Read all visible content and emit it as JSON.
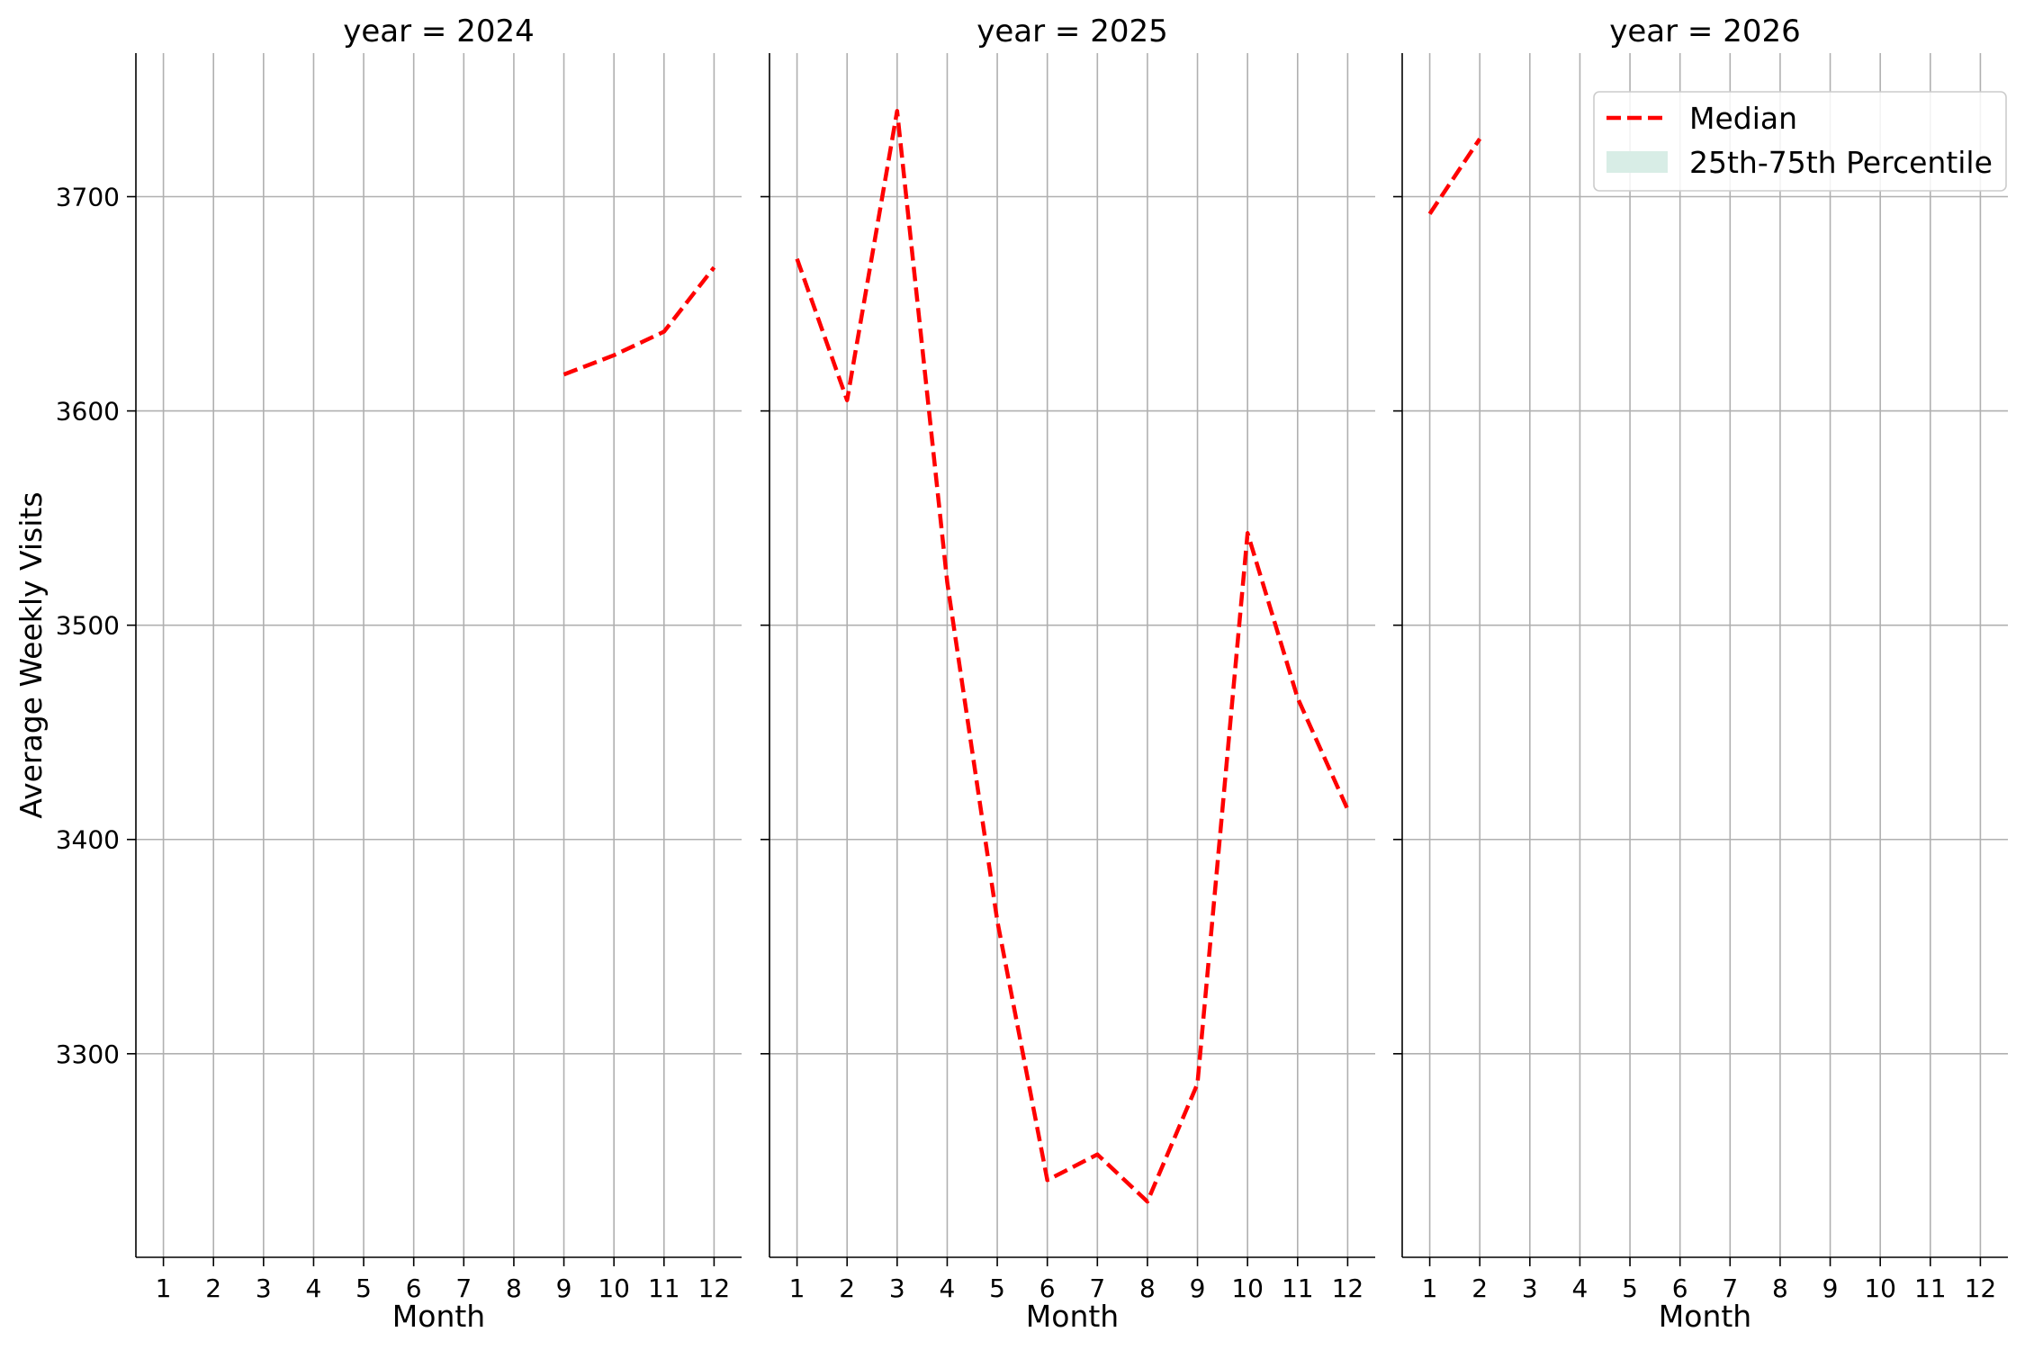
{
  "colors": {
    "median_line": "#ff0000",
    "percentile_band": "#d8ede6",
    "grid": "#b0b0b0"
  },
  "chart_data": {
    "type": "line",
    "ylabel": "Average Weekly Visits",
    "ylim": [
      3205,
      3767
    ],
    "yticks": [
      3300,
      3400,
      3500,
      3600,
      3700
    ],
    "xticks": [
      1,
      2,
      3,
      4,
      5,
      6,
      7,
      8,
      9,
      10,
      11,
      12
    ],
    "xlim": [
      0.45,
      12.55
    ],
    "grid": true,
    "legend": {
      "placement": "top-right of last panel",
      "entries": [
        "Median",
        "25th-75th Percentile"
      ]
    },
    "panels": [
      {
        "title": "year = 2024",
        "xlabel": "Month",
        "series": [
          {
            "name": "Median",
            "style": "dashed",
            "points": [
              [
                9,
                3617
              ],
              [
                10,
                3626
              ],
              [
                11,
                3637
              ],
              [
                12,
                3667
              ]
            ]
          }
        ]
      },
      {
        "title": "year = 2025",
        "xlabel": "Month",
        "series": [
          {
            "name": "Median",
            "style": "dashed",
            "points": [
              [
                1,
                3671
              ],
              [
                2,
                3605
              ],
              [
                3,
                3740
              ],
              [
                4,
                3520
              ],
              [
                5,
                3362
              ],
              [
                6,
                3241
              ],
              [
                7,
                3253
              ],
              [
                8,
                3231
              ],
              [
                9,
                3286
              ],
              [
                10,
                3543
              ],
              [
                11,
                3466
              ],
              [
                12,
                3414
              ]
            ]
          }
        ]
      },
      {
        "title": "year = 2026",
        "xlabel": "Month",
        "series": [
          {
            "name": "Median",
            "style": "dashed",
            "points": [
              [
                1,
                3692
              ],
              [
                2,
                3727
              ]
            ]
          }
        ]
      }
    ]
  }
}
